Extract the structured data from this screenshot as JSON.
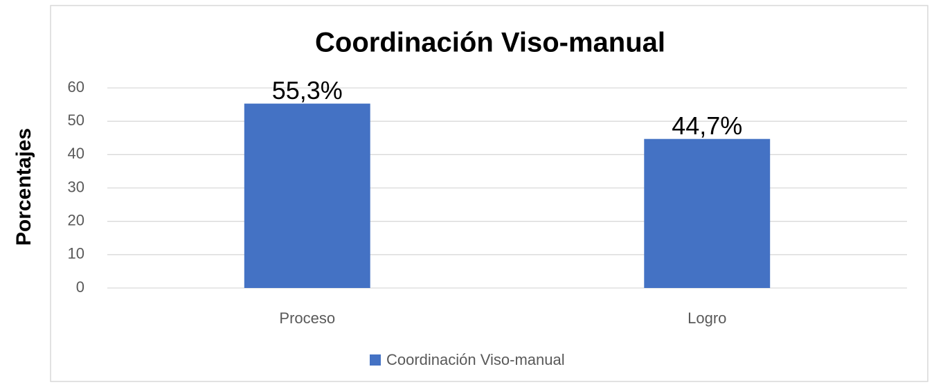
{
  "chart_data": {
    "type": "bar",
    "title": "Coordinación Viso-manual",
    "y_label": "Porcentajes",
    "categories": [
      "Proceso",
      "Logro"
    ],
    "series": [
      {
        "name": "Coordinación Viso-manual",
        "color": "#4472c4",
        "values": [
          55.3,
          44.7
        ],
        "value_labels": [
          "55,3%",
          "44,7%"
        ]
      }
    ],
    "ylim": [
      0,
      60
    ],
    "yticks": [
      0,
      10,
      20,
      30,
      40,
      50,
      60
    ],
    "grid": true,
    "legend": "bottom"
  }
}
